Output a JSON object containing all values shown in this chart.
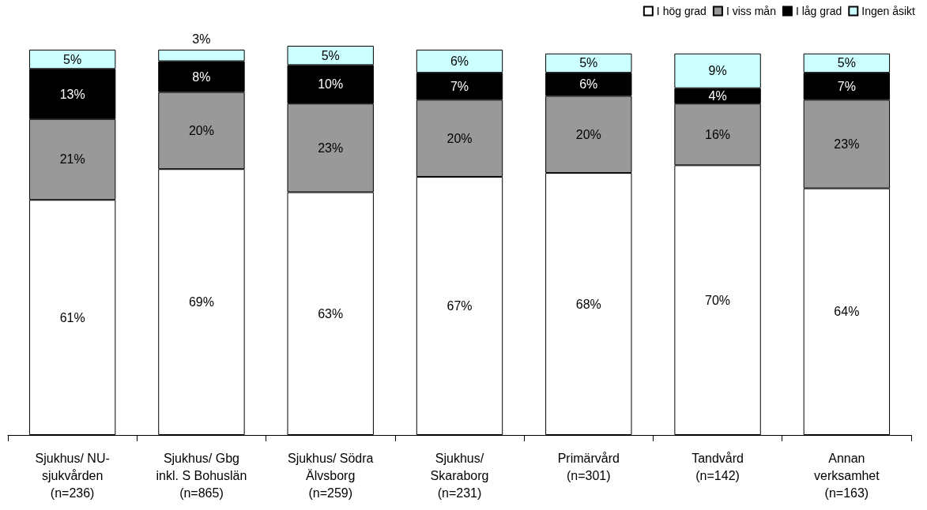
{
  "chart_data": {
    "type": "bar",
    "stacked": true,
    "legend": "top right",
    "grid": false,
    "categories": [
      "Sjukhus/ NU-\nsjukvården\n(n=236)",
      "Sjukhus/ Gbg\ninkl. S Bohuslän\n(n=865)",
      "Sjukhus/ Södra\nÄlvsborg\n(n=259)",
      "Sjukhus/\nSkaraborg\n(n=231)",
      "Primärvård\n(n=301)",
      "Tandvård\n(n=142)",
      "Annan\nverksamhet\n(n=163)"
    ],
    "series": [
      {
        "name": "I hög grad",
        "color": "#ffffff",
        "values": [
          61,
          69,
          63,
          67,
          68,
          70,
          64
        ],
        "value_labels": [
          "61%",
          "69%",
          "63%",
          "67%",
          "68%",
          "70%",
          "64%"
        ]
      },
      {
        "name": "I viss mån",
        "color": "#999999",
        "values": [
          21,
          20,
          23,
          20,
          20,
          16,
          23
        ],
        "value_labels": [
          "21%",
          "20%",
          "23%",
          "20%",
          "20%",
          "16%",
          "23%"
        ]
      },
      {
        "name": "I låg grad",
        "color": "#000000",
        "values": [
          13,
          8,
          10,
          7,
          6,
          4,
          7
        ],
        "value_labels": [
          "13%",
          "8%",
          "10%",
          "7%",
          "6%",
          "4%",
          "7%"
        ]
      },
      {
        "name": "Ingen åsikt",
        "color": "#ccffff",
        "values": [
          5,
          3,
          5,
          6,
          5,
          9,
          5
        ],
        "value_labels": [
          "5%",
          "3%",
          "5%",
          "6%",
          "5%",
          "9%",
          "5%"
        ]
      }
    ]
  }
}
